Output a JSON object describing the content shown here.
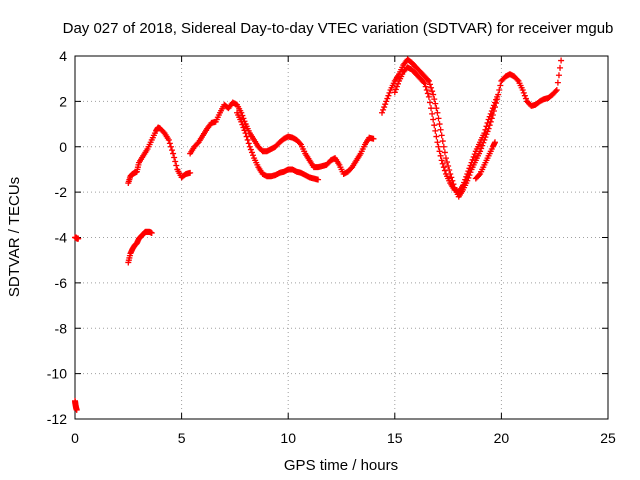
{
  "chart_data": {
    "type": "scatter",
    "title": "Day 027 of 2018, Sidereal Day-to-day VTEC variation (SDTVAR) for receiver mgub",
    "xlabel": "GPS time / hours",
    "ylabel": "SDTVAR / TECUs",
    "xlim": [
      0,
      25
    ],
    "ylim": [
      -12,
      4
    ],
    "xticks": [
      0,
      5,
      10,
      15,
      20,
      25
    ],
    "yticks": [
      -12,
      -10,
      -8,
      -6,
      -4,
      -2,
      0,
      2,
      4
    ],
    "grid": true,
    "marker": "plus",
    "color": "#ff0000",
    "series": [
      {
        "segments": [
          [
            [
              0.0,
              -11.2
            ],
            [
              0.02,
              -11.35
            ],
            [
              0.05,
              -11.5
            ],
            [
              0.08,
              -11.6
            ]
          ],
          [
            [
              0.0,
              -4.0
            ],
            [
              0.05,
              -4.0
            ],
            [
              0.1,
              -4.05
            ],
            [
              0.15,
              -4.05
            ]
          ],
          [
            [
              2.5,
              -5.1
            ],
            [
              2.6,
              -4.7
            ],
            [
              2.7,
              -4.5
            ],
            [
              2.8,
              -4.35
            ],
            [
              2.9,
              -4.25
            ],
            [
              3.0,
              -4.05
            ],
            [
              3.1,
              -3.95
            ],
            [
              3.2,
              -3.85
            ],
            [
              3.3,
              -3.75
            ],
            [
              3.4,
              -3.75
            ],
            [
              3.5,
              -3.75
            ],
            [
              3.6,
              -3.8
            ]
          ],
          [
            [
              2.5,
              -1.6
            ],
            [
              2.6,
              -1.3
            ],
            [
              2.7,
              -1.2
            ],
            [
              2.8,
              -1.15
            ],
            [
              2.9,
              -1.1
            ],
            [
              3.0,
              -0.7
            ],
            [
              3.2,
              -0.4
            ],
            [
              3.4,
              -0.1
            ],
            [
              3.6,
              0.3
            ],
            [
              3.8,
              0.7
            ],
            [
              3.9,
              0.85
            ],
            [
              4.0,
              0.8
            ],
            [
              4.2,
              0.6
            ],
            [
              4.4,
              0.3
            ],
            [
              4.6,
              -0.3
            ],
            [
              4.8,
              -1.0
            ],
            [
              5.0,
              -1.35
            ],
            [
              5.2,
              -1.2
            ],
            [
              5.4,
              -1.15
            ]
          ],
          [
            [
              5.4,
              -0.3
            ],
            [
              5.6,
              0.0
            ],
            [
              5.8,
              0.2
            ],
            [
              6.0,
              0.5
            ],
            [
              6.2,
              0.8
            ],
            [
              6.4,
              1.05
            ],
            [
              6.6,
              1.1
            ],
            [
              6.8,
              1.5
            ],
            [
              7.0,
              1.85
            ],
            [
              7.2,
              1.7
            ],
            [
              7.4,
              1.95
            ],
            [
              7.6,
              1.85
            ],
            [
              7.8,
              1.5
            ],
            [
              8.0,
              1.0
            ]
          ],
          [
            [
              8.0,
              1.0
            ],
            [
              8.2,
              0.6
            ],
            [
              8.4,
              0.3
            ],
            [
              8.6,
              0.0
            ],
            [
              8.8,
              -0.2
            ],
            [
              9.0,
              -0.2
            ],
            [
              9.2,
              -0.1
            ],
            [
              9.4,
              0.0
            ],
            [
              9.6,
              0.2
            ],
            [
              9.8,
              0.35
            ],
            [
              10.0,
              0.45
            ],
            [
              10.2,
              0.4
            ],
            [
              10.4,
              0.3
            ],
            [
              10.6,
              0.1
            ],
            [
              10.8,
              -0.3
            ],
            [
              11.0,
              -0.6
            ],
            [
              11.2,
              -0.9
            ],
            [
              11.4,
              -0.9
            ],
            [
              11.6,
              -0.85
            ],
            [
              11.8,
              -0.8
            ],
            [
              12.0,
              -0.6
            ]
          ],
          [
            [
              7.6,
              1.5
            ],
            [
              7.8,
              1.1
            ],
            [
              8.0,
              0.6
            ],
            [
              8.2,
              0.0
            ],
            [
              8.4,
              -0.5
            ],
            [
              8.6,
              -0.9
            ],
            [
              8.8,
              -1.2
            ],
            [
              9.0,
              -1.3
            ],
            [
              9.2,
              -1.3
            ],
            [
              9.4,
              -1.25
            ],
            [
              9.6,
              -1.15
            ],
            [
              9.8,
              -1.1
            ],
            [
              10.0,
              -1.0
            ],
            [
              10.2,
              -1.0
            ],
            [
              10.4,
              -1.1
            ],
            [
              10.6,
              -1.15
            ],
            [
              10.8,
              -1.25
            ],
            [
              11.0,
              -1.35
            ],
            [
              11.2,
              -1.4
            ],
            [
              11.4,
              -1.45
            ]
          ],
          [
            [
              12.0,
              -0.6
            ],
            [
              12.2,
              -0.5
            ],
            [
              12.4,
              -0.8
            ],
            [
              12.6,
              -1.2
            ],
            [
              12.8,
              -1.1
            ],
            [
              13.0,
              -0.9
            ],
            [
              13.2,
              -0.6
            ],
            [
              13.4,
              -0.3
            ],
            [
              13.6,
              0.1
            ],
            [
              13.8,
              0.4
            ],
            [
              14.0,
              0.35
            ]
          ],
          [
            [
              14.4,
              1.5
            ],
            [
              14.6,
              2.0
            ],
            [
              14.8,
              2.5
            ],
            [
              15.0,
              2.9
            ],
            [
              15.2,
              3.2
            ],
            [
              15.4,
              3.6
            ],
            [
              15.6,
              3.85
            ],
            [
              15.8,
              3.7
            ],
            [
              16.0,
              3.5
            ],
            [
              16.2,
              3.3
            ],
            [
              16.4,
              3.1
            ],
            [
              16.6,
              2.9
            ],
            [
              16.8,
              2.3
            ],
            [
              17.0,
              1.5
            ],
            [
              17.2,
              0.5
            ],
            [
              17.4,
              -0.5
            ],
            [
              17.6,
              -1.2
            ],
            [
              17.8,
              -1.8
            ],
            [
              18.0,
              -2.2
            ],
            [
              18.2,
              -1.9
            ],
            [
              18.4,
              -1.5
            ],
            [
              18.6,
              -1.0
            ],
            [
              18.8,
              -0.6
            ],
            [
              19.0,
              -0.2
            ],
            [
              19.2,
              0.3
            ],
            [
              19.4,
              0.8
            ],
            [
              19.6,
              1.4
            ],
            [
              19.8,
              2.1
            ],
            [
              20.0,
              2.9
            ],
            [
              20.2,
              3.1
            ],
            [
              20.4,
              3.2
            ],
            [
              20.6,
              3.1
            ],
            [
              20.8,
              2.9
            ],
            [
              21.0,
              2.5
            ],
            [
              21.2,
              2.0
            ],
            [
              21.4,
              1.8
            ],
            [
              21.6,
              1.85
            ],
            [
              21.8,
              2.0
            ],
            [
              22.0,
              2.1
            ],
            [
              22.2,
              2.15
            ],
            [
              22.4,
              2.3
            ],
            [
              22.6,
              2.5
            ],
            [
              22.8,
              3.8
            ]
          ],
          [
            [
              15.0,
              2.4
            ],
            [
              15.2,
              2.9
            ],
            [
              15.4,
              3.3
            ],
            [
              15.6,
              3.5
            ],
            [
              15.8,
              3.4
            ],
            [
              16.0,
              3.2
            ],
            [
              16.2,
              3.0
            ],
            [
              16.4,
              2.8
            ],
            [
              16.6,
              2.2
            ],
            [
              16.8,
              1.2
            ],
            [
              17.0,
              0.2
            ],
            [
              17.2,
              -0.6
            ],
            [
              17.4,
              -1.2
            ],
            [
              17.6,
              -1.6
            ],
            [
              17.8,
              -1.9
            ],
            [
              18.0,
              -2.0
            ],
            [
              18.2,
              -1.7
            ],
            [
              18.4,
              -1.2
            ],
            [
              18.6,
              -0.7
            ],
            [
              18.8,
              -0.2
            ],
            [
              19.0,
              0.2
            ],
            [
              19.2,
              0.6
            ],
            [
              19.4,
              1.2
            ],
            [
              19.6,
              1.7
            ],
            [
              19.8,
              2.2
            ]
          ],
          [
            [
              18.8,
              -1.4
            ],
            [
              19.0,
              -1.2
            ],
            [
              19.2,
              -0.8
            ],
            [
              19.4,
              -0.4
            ],
            [
              19.6,
              0.0
            ],
            [
              19.7,
              0.2
            ]
          ]
        ]
      }
    ]
  }
}
